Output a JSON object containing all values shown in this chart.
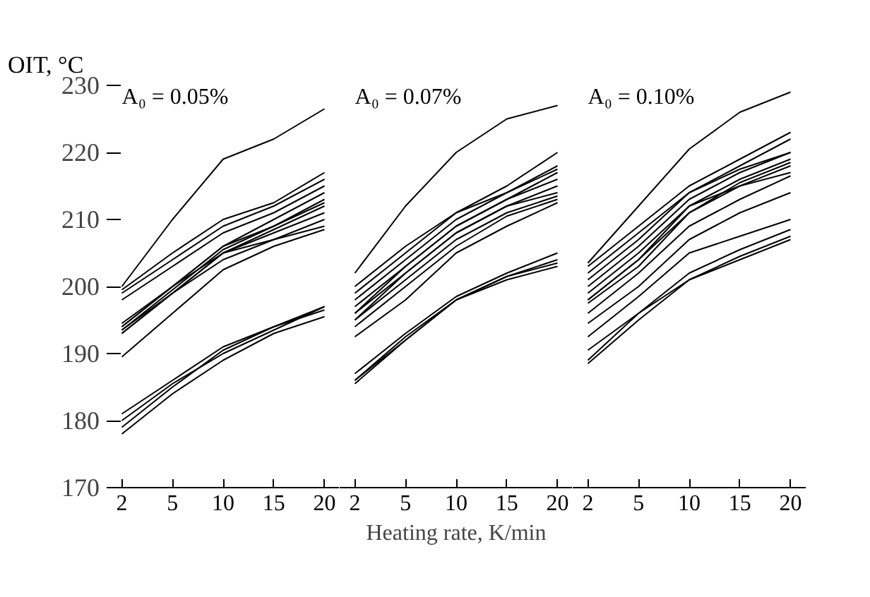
{
  "chart_data": [
    {
      "type": "line",
      "ylabel": "OIT, °C",
      "annotations": [
        "A₀ = 0.05%"
      ],
      "categories": [
        "2",
        "5",
        "10",
        "15",
        "20"
      ],
      "ylim": [
        170,
        230
      ],
      "yticks": [
        170,
        180,
        190,
        200,
        210,
        220,
        230
      ],
      "grid": false,
      "line_style": "solid",
      "series": [
        {
          "color": "#000000",
          "values": [
            200,
            210,
            219,
            222,
            226.5
          ]
        },
        {
          "color": "#000000",
          "values": [
            199.5,
            205,
            210,
            212.5,
            217
          ]
        },
        {
          "color": "#000000",
          "values": [
            199,
            204,
            209,
            212,
            216
          ]
        },
        {
          "color": "#000000",
          "values": [
            198,
            203,
            208,
            211,
            215
          ]
        },
        {
          "color": "#000000",
          "values": [
            194.5,
            200,
            206,
            210,
            214
          ]
        },
        {
          "color": "#000000",
          "values": [
            194,
            200,
            206,
            209,
            213
          ]
        },
        {
          "color": "#000000",
          "values": [
            193.5,
            199.5,
            205.5,
            209,
            212.5
          ]
        },
        {
          "color": "#000000",
          "values": [
            193,
            199,
            205,
            208.5,
            212
          ]
        },
        {
          "color": "#000000",
          "values": [
            193.5,
            199,
            205,
            208,
            211
          ]
        },
        {
          "color": "#000000",
          "values": [
            194,
            200,
            205,
            207,
            210
          ]
        },
        {
          "color": "#000000",
          "values": [
            193,
            199,
            204,
            207,
            209
          ]
        },
        {
          "color": "#000000",
          "values": [
            189.5,
            196,
            202.5,
            206,
            208.5
          ]
        },
        {
          "color": "#000000",
          "values": [
            181,
            186,
            191,
            194,
            197
          ]
        },
        {
          "color": "#000000",
          "values": [
            180,
            185.5,
            190,
            193.5,
            197
          ]
        },
        {
          "color": "#000000",
          "values": [
            179,
            185,
            190.5,
            194,
            196.5
          ]
        },
        {
          "color": "#000000",
          "values": [
            178,
            184,
            189,
            193,
            195.5
          ]
        }
      ]
    },
    {
      "type": "line",
      "xlabel": "Heating rate, K/min",
      "annotations": [
        "A₀ = 0.07%"
      ],
      "categories": [
        "2",
        "5",
        "10",
        "15",
        "20"
      ],
      "ylim": [
        170,
        230
      ],
      "tick_labels": "x",
      "grid": false,
      "line_style": "solid",
      "series": [
        {
          "color": "#000000",
          "values": [
            202,
            212,
            220,
            225,
            227
          ]
        },
        {
          "color": "#000000",
          "values": [
            200,
            206,
            211,
            215,
            220
          ]
        },
        {
          "color": "#000000",
          "values": [
            199,
            205,
            211,
            214,
            218
          ]
        },
        {
          "color": "#000000",
          "values": [
            198,
            204,
            210,
            214,
            217.5
          ]
        },
        {
          "color": "#000000",
          "values": [
            197,
            203,
            209,
            213,
            217
          ]
        },
        {
          "color": "#000000",
          "values": [
            196,
            203,
            209,
            213,
            216
          ]
        },
        {
          "color": "#000000",
          "values": [
            196,
            202,
            208,
            212,
            215
          ]
        },
        {
          "color": "#000000",
          "values": [
            195,
            202,
            208,
            212,
            214
          ]
        },
        {
          "color": "#000000",
          "values": [
            195,
            201,
            207,
            211,
            213.5
          ]
        },
        {
          "color": "#000000",
          "values": [
            194,
            200,
            206,
            210.5,
            213
          ]
        },
        {
          "color": "#000000",
          "values": [
            192.5,
            198,
            205,
            209,
            212.5
          ]
        },
        {
          "color": "#000000",
          "values": [
            187,
            193,
            198.5,
            202,
            205
          ]
        },
        {
          "color": "#000000",
          "values": [
            186,
            192.5,
            198,
            201.5,
            204
          ]
        },
        {
          "color": "#000000",
          "values": [
            186,
            192,
            198,
            201.5,
            203.5
          ]
        },
        {
          "color": "#000000",
          "values": [
            185.5,
            192,
            198,
            201,
            203
          ]
        }
      ]
    },
    {
      "type": "line",
      "annotations": [
        "A₀ = 0.10%"
      ],
      "categories": [
        "2",
        "5",
        "10",
        "15",
        "20"
      ],
      "ylim": [
        170,
        230
      ],
      "tick_labels": "x",
      "grid": false,
      "line_style": "solid",
      "series": [
        {
          "color": "#000000",
          "values": [
            203.5,
            212,
            220.5,
            226,
            229
          ]
        },
        {
          "color": "#000000",
          "values": [
            203,
            209,
            215,
            219,
            223
          ]
        },
        {
          "color": "#000000",
          "values": [
            202,
            208,
            214,
            218,
            222
          ]
        },
        {
          "color": "#000000",
          "values": [
            201,
            207,
            214,
            217.5,
            220
          ]
        },
        {
          "color": "#000000",
          "values": [
            200,
            206,
            213,
            217,
            220
          ]
        },
        {
          "color": "#000000",
          "values": [
            199,
            205,
            212,
            216,
            219
          ]
        },
        {
          "color": "#000000",
          "values": [
            198,
            204,
            211,
            215.5,
            218.5
          ]
        },
        {
          "color": "#000000",
          "values": [
            197.5,
            203,
            211,
            215,
            218
          ]
        },
        {
          "color": "#000000",
          "values": [
            198,
            204,
            212,
            215,
            217
          ]
        },
        {
          "color": "#000000",
          "values": [
            196,
            202,
            209,
            213,
            216.5
          ]
        },
        {
          "color": "#000000",
          "values": [
            194.5,
            200,
            207,
            211,
            214
          ]
        },
        {
          "color": "#000000",
          "values": [
            192.5,
            198.5,
            205,
            207.5,
            210
          ]
        },
        {
          "color": "#000000",
          "values": [
            190.5,
            196,
            202,
            205.5,
            208.5
          ]
        },
        {
          "color": "#000000",
          "values": [
            189,
            196,
            201,
            204.5,
            207.5
          ]
        },
        {
          "color": "#000000",
          "values": [
            188.5,
            195,
            201,
            204,
            207
          ]
        }
      ]
    }
  ]
}
